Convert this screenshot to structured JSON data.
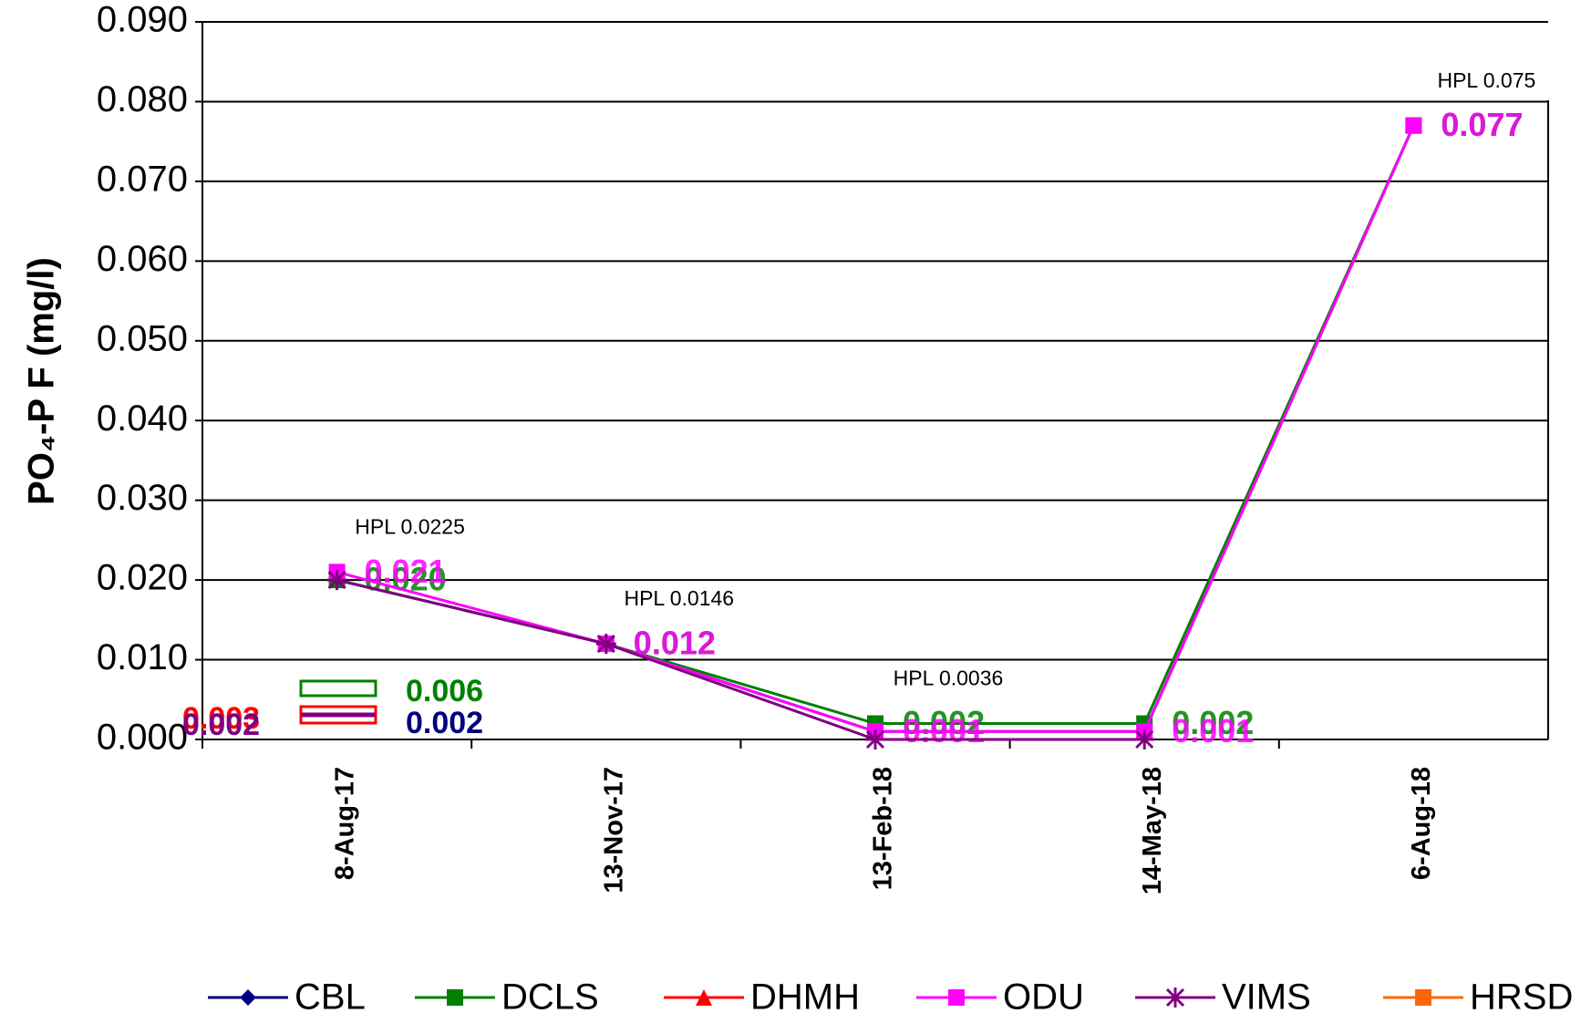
{
  "chart_data": {
    "type": "line",
    "y_label": "PO₄-P F (mg/l)",
    "categories": [
      "8-Aug-17",
      "13-Nov-17",
      "13-Feb-18",
      "14-May-18",
      "6-Aug-18"
    ],
    "series": [
      {
        "name": "CBL",
        "color": "#000080",
        "marker": "diamond",
        "values": [
          0.02,
          0.012,
          0.001,
          0.001,
          0.077
        ]
      },
      {
        "name": "DCLS",
        "color": "#008000",
        "marker": "square",
        "values": [
          0.02,
          0.012,
          0.002,
          0.002,
          0.077
        ],
        "value_labels": [
          "0.020",
          "0.012",
          "0.002",
          "0.002",
          "0.077"
        ]
      },
      {
        "name": "DHMH",
        "color": "#ff0000",
        "marker": "triangle",
        "values": [
          null,
          null,
          null,
          null,
          null
        ]
      },
      {
        "name": "ODU",
        "color": "#ff00ff",
        "marker": "square",
        "values": [
          0.021,
          0.012,
          0.001,
          0.001,
          0.077
        ],
        "value_labels": [
          "0.021",
          "0.012",
          "0.001",
          "0.001",
          "0.077"
        ]
      },
      {
        "name": "VIMS",
        "color": "#800080",
        "marker": "asterisk",
        "values": [
          0.02,
          0.012,
          0.0,
          0.0,
          null
        ]
      },
      {
        "name": "HRSD",
        "color": "#ff6600",
        "marker": "square",
        "values": [
          null,
          null,
          null,
          null,
          null
        ]
      }
    ],
    "annotations": [
      {
        "label": "HPL 0.0225",
        "x": "8-Aug-17"
      },
      {
        "label": "HPL 0.0146",
        "x": "13-Nov-17"
      },
      {
        "label": "HPL 0.0036",
        "x": "13-Feb-18"
      },
      {
        "label": "HPL 0.075",
        "x": "6-Aug-18"
      }
    ],
    "stray_labels": [
      {
        "label": "0.006",
        "color": "#008000"
      },
      {
        "label": "0.002",
        "color": "#000080"
      },
      {
        "label": "0.003",
        "color": "#ff0000"
      },
      {
        "label": "0.002",
        "color": "#800080"
      }
    ],
    "ylim": [
      0,
      0.09
    ],
    "yticks": [
      {
        "value": 0,
        "label": "0.000"
      },
      {
        "value": 0.01,
        "label": "0.010"
      },
      {
        "value": 0.02,
        "label": "0.020"
      },
      {
        "value": 0.03,
        "label": "0.030"
      },
      {
        "value": 0.04,
        "label": "0.040"
      },
      {
        "value": 0.05,
        "label": "0.050"
      },
      {
        "value": 0.06,
        "label": "0.060"
      },
      {
        "value": 0.07,
        "label": "0.070"
      },
      {
        "value": 0.08,
        "label": "0.080"
      },
      {
        "value": 0.09,
        "label": "0.090"
      }
    ],
    "grid": true
  }
}
